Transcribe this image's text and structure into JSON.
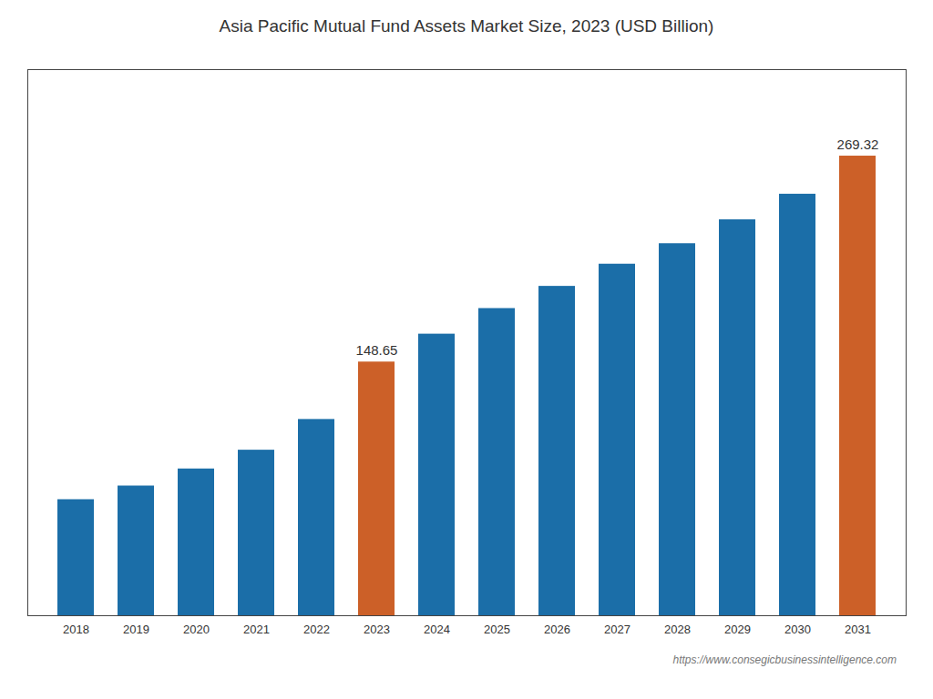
{
  "chart_data": {
    "type": "bar",
    "title": "Asia Pacific Mutual Fund Assets Market Size, 2023 (USD Billion)",
    "categories": [
      "2018",
      "2019",
      "2020",
      "2021",
      "2022",
      "2023",
      "2024",
      "2025",
      "2026",
      "2027",
      "2028",
      "2029",
      "2030",
      "2031"
    ],
    "values": [
      68.0,
      76.0,
      86.0,
      97.0,
      115.0,
      148.65,
      165.0,
      180.0,
      193.0,
      206.0,
      218.0,
      232.0,
      247.0,
      269.32
    ],
    "value_labels": [
      null,
      null,
      null,
      null,
      null,
      "148.65",
      null,
      null,
      null,
      null,
      null,
      null,
      null,
      "269.32"
    ],
    "colors": [
      "#1b6ea8",
      "#1b6ea8",
      "#1b6ea8",
      "#1b6ea8",
      "#1b6ea8",
      "#cc6028",
      "#1b6ea8",
      "#1b6ea8",
      "#1b6ea8",
      "#1b6ea8",
      "#1b6ea8",
      "#1b6ea8",
      "#1b6ea8",
      "#cc6028"
    ],
    "ylim": [
      0,
      320
    ],
    "data_labels": true,
    "tick_labels": "x",
    "grid": false,
    "annotations": [
      "https://www.consegicbusinessintelligence.com"
    ]
  }
}
